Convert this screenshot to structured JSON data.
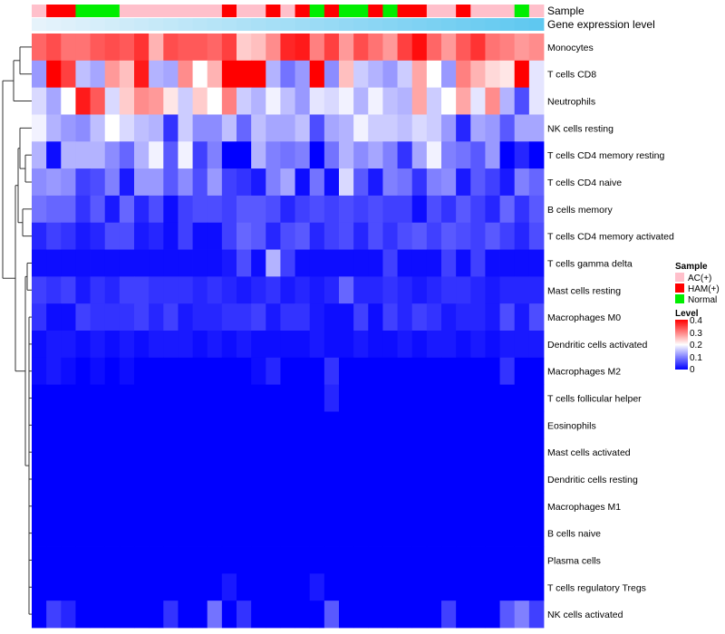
{
  "chart_data": {
    "type": "heatmap",
    "title": "",
    "annotation_tracks": [
      {
        "name": "Sample",
        "label": "Sample"
      },
      {
        "name": "Gene expression level",
        "label": "Gene expression level"
      }
    ],
    "colors": {
      "AC(+)": "#ffc0cb",
      "HAM(+)": "#ff0000",
      "Normal": "#00ee00",
      "low": "#0000ff",
      "mid": "#ffffff",
      "high": "#ff0000",
      "expr_light": "#e6f3fb",
      "expr_dark": "#5fc8f0"
    },
    "sample_groups": [
      "AC(+)",
      "HAM(+)",
      "HAM(+)",
      "Normal",
      "Normal",
      "Normal",
      "AC(+)",
      "AC(+)",
      "AC(+)",
      "AC(+)",
      "AC(+)",
      "AC(+)",
      "AC(+)",
      "HAM(+)",
      "AC(+)",
      "AC(+)",
      "HAM(+)",
      "AC(+)",
      "HAM(+)",
      "Normal",
      "HAM(+)",
      "Normal",
      "Normal",
      "HAM(+)",
      "Normal",
      "HAM(+)",
      "HAM(+)",
      "AC(+)",
      "AC(+)",
      "HAM(+)",
      "AC(+)",
      "AC(+)",
      "AC(+)",
      "Normal",
      "AC(+)"
    ],
    "rows": [
      "Monocytes",
      "T cells CD8",
      "Neutrophils",
      "NK cells resting",
      "T cells CD4 memory resting",
      "T cells CD4 naive",
      "B cells memory",
      "T cells CD4 memory activated",
      "T cells gamma delta",
      "Mast cells resting",
      "Macrophages M0",
      "Dendritic cells activated",
      "Macrophages M2",
      "T cells follicular helper",
      "Eosinophils",
      "Mast cells activated",
      "Dendritic cells resting",
      "Macrophages M1",
      "B cells naive",
      "Plasma cells",
      "T cells regulatory  Tregs",
      "NK cells activated"
    ],
    "values": [
      [
        0.32,
        0.34,
        0.31,
        0.31,
        0.33,
        0.34,
        0.33,
        0.36,
        0.26,
        0.34,
        0.33,
        0.33,
        0.32,
        0.35,
        0.24,
        0.25,
        0.29,
        0.37,
        0.38,
        0.3,
        0.35,
        0.28,
        0.34,
        0.31,
        0.28,
        0.35,
        0.39,
        0.32,
        0.28,
        0.33,
        0.36,
        0.31,
        0.3,
        0.28,
        0.29
      ],
      [
        0.12,
        0.4,
        0.35,
        0.15,
        0.13,
        0.28,
        0.25,
        0.38,
        0.14,
        0.13,
        0.29,
        0.2,
        0.26,
        0.4,
        0.4,
        0.4,
        0.14,
        0.09,
        0.12,
        0.4,
        0.11,
        0.25,
        0.16,
        0.14,
        0.12,
        0.16,
        0.27,
        0.2,
        0.12,
        0.3,
        0.26,
        0.23,
        0.22,
        0.4,
        0.18
      ],
      [
        0.17,
        0.13,
        0.2,
        0.38,
        0.33,
        0.17,
        0.24,
        0.29,
        0.28,
        0.22,
        0.16,
        0.24,
        0.2,
        0.3,
        0.16,
        0.14,
        0.19,
        0.15,
        0.12,
        0.18,
        0.17,
        0.19,
        0.14,
        0.19,
        0.15,
        0.14,
        0.27,
        0.16,
        0.2,
        0.27,
        0.18,
        0.29,
        0.14,
        0.06,
        0.18
      ],
      [
        0.19,
        0.14,
        0.12,
        0.11,
        0.15,
        0.2,
        0.17,
        0.15,
        0.14,
        0.04,
        0.16,
        0.11,
        0.11,
        0.15,
        0.08,
        0.15,
        0.13,
        0.13,
        0.15,
        0.06,
        0.13,
        0.14,
        0.19,
        0.16,
        0.16,
        0.15,
        0.17,
        0.16,
        0.12,
        0.03,
        0.13,
        0.12,
        0.07,
        0.13,
        0.13
      ],
      [
        0.14,
        0.01,
        0.14,
        0.14,
        0.14,
        0.11,
        0.08,
        0.14,
        0.19,
        0.07,
        0.19,
        0.05,
        0.1,
        0.0,
        0.0,
        0.14,
        0.1,
        0.09,
        0.1,
        0.0,
        0.09,
        0.14,
        0.11,
        0.13,
        0.1,
        0.04,
        0.13,
        0.19,
        0.1,
        0.09,
        0.07,
        0.12,
        0.0,
        0.03,
        0.0
      ],
      [
        0.11,
        0.12,
        0.11,
        0.05,
        0.06,
        0.1,
        0.02,
        0.12,
        0.12,
        0.07,
        0.11,
        0.06,
        0.12,
        0.05,
        0.04,
        0.02,
        0.1,
        0.13,
        0.01,
        0.09,
        0.01,
        0.17,
        0.07,
        0.02,
        0.1,
        0.09,
        0.04,
        0.1,
        0.11,
        0.02,
        0.07,
        0.05,
        0.02,
        0.1,
        0.08
      ],
      [
        0.09,
        0.08,
        0.08,
        0.04,
        0.07,
        0.02,
        0.08,
        0.03,
        0.06,
        0.01,
        0.05,
        0.06,
        0.06,
        0.05,
        0.07,
        0.07,
        0.06,
        0.03,
        0.05,
        0.06,
        0.05,
        0.06,
        0.05,
        0.06,
        0.05,
        0.05,
        0.01,
        0.06,
        0.04,
        0.07,
        0.05,
        0.03,
        0.08,
        0.04,
        0.07
      ],
      [
        0.03,
        0.05,
        0.04,
        0.02,
        0.03,
        0.06,
        0.06,
        0.02,
        0.03,
        0.01,
        0.05,
        0.01,
        0.01,
        0.05,
        0.08,
        0.07,
        0.03,
        0.06,
        0.07,
        0.03,
        0.05,
        0.06,
        0.03,
        0.06,
        0.04,
        0.06,
        0.07,
        0.05,
        0.07,
        0.06,
        0.05,
        0.07,
        0.05,
        0.03,
        0.06
      ],
      [
        0.01,
        0.01,
        0.01,
        0.01,
        0.01,
        0.01,
        0.01,
        0.01,
        0.01,
        0.01,
        0.01,
        0.01,
        0.01,
        0.02,
        0.06,
        0.01,
        0.14,
        0.05,
        0.01,
        0.01,
        0.01,
        0.01,
        0.01,
        0.01,
        0.05,
        0.01,
        0.01,
        0.01,
        0.05,
        0.01,
        0.05,
        0.01,
        0.01,
        0.01,
        0.01
      ],
      [
        0.05,
        0.04,
        0.05,
        0.02,
        0.04,
        0.03,
        0.05,
        0.05,
        0.04,
        0.04,
        0.04,
        0.03,
        0.04,
        0.03,
        0.02,
        0.03,
        0.04,
        0.02,
        0.03,
        0.02,
        0.03,
        0.08,
        0.03,
        0.03,
        0.04,
        0.03,
        0.02,
        0.03,
        0.04,
        0.04,
        0.03,
        0.02,
        0.03,
        0.03,
        0.03
      ],
      [
        0.04,
        0.01,
        0.01,
        0.05,
        0.04,
        0.04,
        0.04,
        0.05,
        0.03,
        0.05,
        0.02,
        0.03,
        0.03,
        0.04,
        0.04,
        0.05,
        0.02,
        0.04,
        0.04,
        0.02,
        0.01,
        0.01,
        0.05,
        0.01,
        0.05,
        0.03,
        0.05,
        0.04,
        0.02,
        0.03,
        0.03,
        0.02,
        0.06,
        0.02,
        0.06
      ],
      [
        0.01,
        0.02,
        0.02,
        0.01,
        0.02,
        0.01,
        0.02,
        0.01,
        0.02,
        0.02,
        0.02,
        0.01,
        0.02,
        0.01,
        0.02,
        0.01,
        0.01,
        0.01,
        0.01,
        0.02,
        0.01,
        0.01,
        0.02,
        0.01,
        0.01,
        0.02,
        0.01,
        0.02,
        0.02,
        0.01,
        0.02,
        0.01,
        0.02,
        0.02,
        0.02
      ],
      [
        0.01,
        0.02,
        0.01,
        0.0,
        0.01,
        0.0,
        0.01,
        0.0,
        0.0,
        0.0,
        0.0,
        0.0,
        0.0,
        0.0,
        0.0,
        0.01,
        0.03,
        0.0,
        0.0,
        0.0,
        0.04,
        0.0,
        0.0,
        0.0,
        0.0,
        0.0,
        0.0,
        0.0,
        0.0,
        0.0,
        0.0,
        0.0,
        0.04,
        0.0,
        0.0
      ],
      [
        0.0,
        0.0,
        0.0,
        0.0,
        0.0,
        0.0,
        0.0,
        0.0,
        0.0,
        0.0,
        0.0,
        0.0,
        0.0,
        0.0,
        0.0,
        0.0,
        0.0,
        0.0,
        0.0,
        0.0,
        0.03,
        0.0,
        0.0,
        0.0,
        0.0,
        0.0,
        0.0,
        0.0,
        0.0,
        0.0,
        0.0,
        0.0,
        0.0,
        0.0,
        0.0
      ],
      [
        0.0,
        0.0,
        0.0,
        0.0,
        0.0,
        0.0,
        0.0,
        0.0,
        0.0,
        0.0,
        0.0,
        0.0,
        0.0,
        0.0,
        0.0,
        0.0,
        0.0,
        0.0,
        0.0,
        0.0,
        0.0,
        0.0,
        0.0,
        0.0,
        0.0,
        0.0,
        0.0,
        0.0,
        0.0,
        0.0,
        0.0,
        0.0,
        0.0,
        0.0,
        0.0
      ],
      [
        0.0,
        0.0,
        0.0,
        0.0,
        0.0,
        0.0,
        0.0,
        0.0,
        0.0,
        0.0,
        0.0,
        0.0,
        0.0,
        0.0,
        0.0,
        0.0,
        0.0,
        0.0,
        0.0,
        0.0,
        0.0,
        0.0,
        0.0,
        0.0,
        0.0,
        0.0,
        0.0,
        0.0,
        0.0,
        0.0,
        0.0,
        0.0,
        0.0,
        0.0,
        0.0
      ],
      [
        0.0,
        0.0,
        0.0,
        0.0,
        0.0,
        0.0,
        0.0,
        0.0,
        0.0,
        0.0,
        0.0,
        0.0,
        0.0,
        0.0,
        0.0,
        0.0,
        0.0,
        0.0,
        0.0,
        0.0,
        0.0,
        0.0,
        0.0,
        0.0,
        0.0,
        0.0,
        0.0,
        0.0,
        0.0,
        0.0,
        0.0,
        0.0,
        0.0,
        0.0,
        0.0
      ],
      [
        0.0,
        0.0,
        0.0,
        0.0,
        0.0,
        0.0,
        0.0,
        0.0,
        0.0,
        0.0,
        0.0,
        0.0,
        0.0,
        0.0,
        0.0,
        0.0,
        0.0,
        0.0,
        0.0,
        0.0,
        0.0,
        0.0,
        0.0,
        0.0,
        0.0,
        0.0,
        0.0,
        0.0,
        0.0,
        0.0,
        0.0,
        0.0,
        0.0,
        0.0,
        0.0
      ],
      [
        0.0,
        0.0,
        0.0,
        0.0,
        0.0,
        0.0,
        0.0,
        0.0,
        0.0,
        0.0,
        0.0,
        0.0,
        0.0,
        0.0,
        0.0,
        0.0,
        0.0,
        0.0,
        0.0,
        0.0,
        0.0,
        0.0,
        0.0,
        0.0,
        0.0,
        0.0,
        0.0,
        0.0,
        0.0,
        0.0,
        0.0,
        0.0,
        0.0,
        0.0,
        0.0
      ],
      [
        0.0,
        0.0,
        0.0,
        0.0,
        0.0,
        0.0,
        0.0,
        0.0,
        0.0,
        0.0,
        0.0,
        0.0,
        0.0,
        0.0,
        0.0,
        0.0,
        0.0,
        0.0,
        0.0,
        0.0,
        0.0,
        0.0,
        0.0,
        0.0,
        0.0,
        0.0,
        0.0,
        0.0,
        0.0,
        0.0,
        0.0,
        0.0,
        0.0,
        0.0,
        0.0
      ],
      [
        0.0,
        0.0,
        0.0,
        0.0,
        0.0,
        0.0,
        0.0,
        0.0,
        0.0,
        0.0,
        0.0,
        0.0,
        0.0,
        0.02,
        0.0,
        0.0,
        0.0,
        0.0,
        0.0,
        0.02,
        0.0,
        0.0,
        0.0,
        0.0,
        0.0,
        0.0,
        0.0,
        0.0,
        0.0,
        0.0,
        0.0,
        0.0,
        0.0,
        0.0,
        0.0
      ],
      [
        0.0,
        0.05,
        0.03,
        0.0,
        0.0,
        0.0,
        0.0,
        0.0,
        0.0,
        0.04,
        0.0,
        0.0,
        0.09,
        0.0,
        0.04,
        0.0,
        0.0,
        0.0,
        0.0,
        0.0,
        0.07,
        0.0,
        0.0,
        0.0,
        0.0,
        0.0,
        0.0,
        0.0,
        0.05,
        0.0,
        0.0,
        0.0,
        0.07,
        0.1,
        0.05
      ]
    ],
    "legends": {
      "sample": {
        "title": "Sample",
        "items": [
          "AC(+)",
          "HAM(+)",
          "Normal"
        ]
      },
      "level": {
        "title": "Level",
        "ticks": [
          "0.4",
          "0.3",
          "0.2",
          "0.1",
          "0"
        ],
        "range": [
          0,
          0.4
        ]
      }
    },
    "legend_position": "right"
  }
}
